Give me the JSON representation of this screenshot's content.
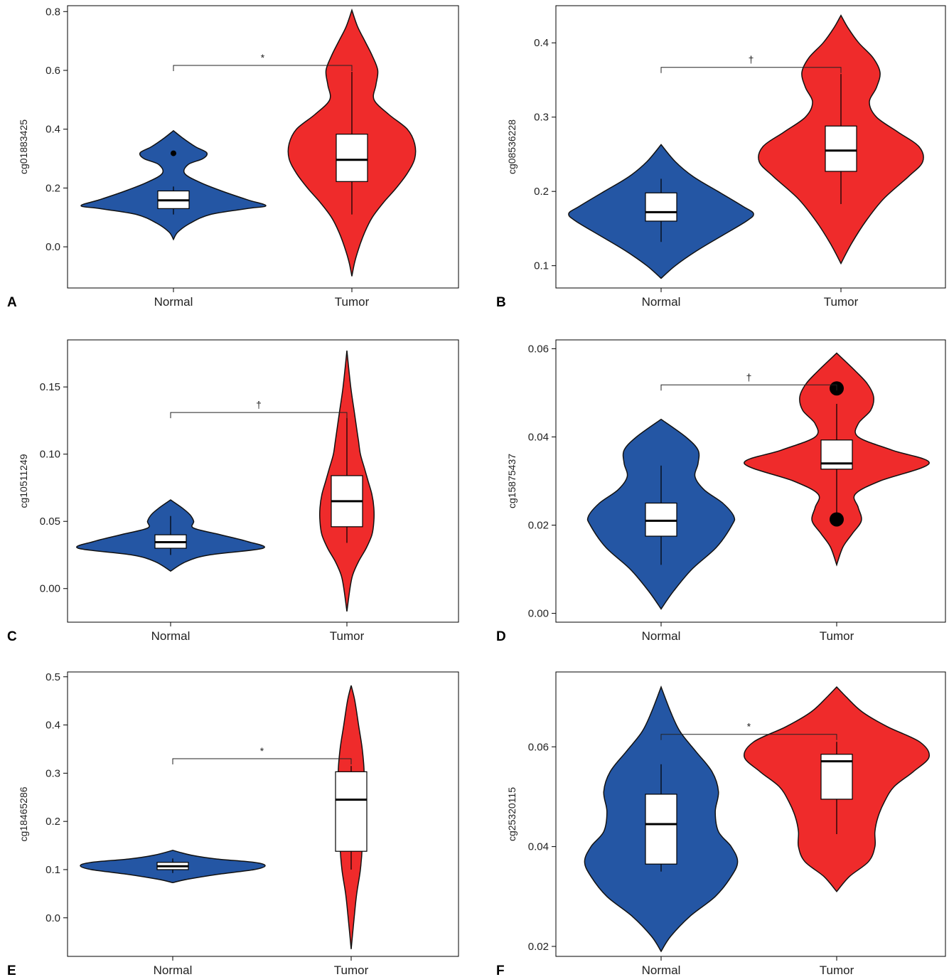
{
  "colors": {
    "normal": "#2456a4",
    "tumor": "#ef2b2b",
    "box": "#ffffff",
    "axis": "#000000"
  },
  "chart_data": [
    {
      "panel": "A",
      "type": "violin",
      "ylabel": "cg01883425",
      "categories": [
        "Normal",
        "Tumor"
      ],
      "yticks": [
        "0.0",
        "0.2",
        "0.4",
        "0.6",
        "0.8"
      ],
      "ylim": [
        -0.14,
        0.82
      ],
      "significance": "*",
      "series": [
        {
          "name": "Normal",
          "color": "#2456a4",
          "violin": [
            [
              0.025,
              0
            ],
            [
              0.05,
              0.012
            ],
            [
              0.08,
              0.045
            ],
            [
              0.11,
              0.1
            ],
            [
              0.13,
              0.2
            ],
            [
              0.14,
              0.25
            ],
            [
              0.16,
              0.2
            ],
            [
              0.19,
              0.13
            ],
            [
              0.22,
              0.07
            ],
            [
              0.25,
              0.03
            ],
            [
              0.28,
              0.04
            ],
            [
              0.3,
              0.08
            ],
            [
              0.32,
              0.09
            ],
            [
              0.34,
              0.06
            ],
            [
              0.37,
              0.025
            ],
            [
              0.395,
              0
            ]
          ],
          "box": {
            "q1": 0.13,
            "median": 0.158,
            "q3": 0.19,
            "wlow": 0.11,
            "whigh": 0.205
          },
          "outliers": [
            0.318
          ]
        },
        {
          "name": "Tumor",
          "color": "#ef2b2b",
          "violin": [
            [
              -0.1,
              0
            ],
            [
              -0.05,
              0.008
            ],
            [
              0.0,
              0.02
            ],
            [
              0.05,
              0.035
            ],
            [
              0.1,
              0.055
            ],
            [
              0.15,
              0.085
            ],
            [
              0.2,
              0.12
            ],
            [
              0.25,
              0.15
            ],
            [
              0.3,
              0.17
            ],
            [
              0.35,
              0.17
            ],
            [
              0.4,
              0.15
            ],
            [
              0.45,
              0.1
            ],
            [
              0.5,
              0.06
            ],
            [
              0.55,
              0.065
            ],
            [
              0.6,
              0.07
            ],
            [
              0.65,
              0.055
            ],
            [
              0.7,
              0.035
            ],
            [
              0.75,
              0.015
            ],
            [
              0.805,
              0
            ]
          ],
          "box": {
            "q1": 0.222,
            "median": 0.296,
            "q3": 0.383,
            "wlow": 0.11,
            "whigh": 0.595
          },
          "outliers": []
        }
      ],
      "bracket_y": 0.617
    },
    {
      "panel": "B",
      "type": "violin",
      "ylabel": "cg08536228",
      "categories": [
        "Normal",
        "Tumor"
      ],
      "yticks": [
        "0.1",
        "0.2",
        "0.3",
        "0.4"
      ],
      "ylim": [
        0.07,
        0.45
      ],
      "significance": "†",
      "series": [
        {
          "name": "Normal",
          "color": "#2456a4",
          "violin": [
            [
              0.083,
              0
            ],
            [
              0.1,
              0.04
            ],
            [
              0.12,
              0.1
            ],
            [
              0.14,
              0.17
            ],
            [
              0.16,
              0.24
            ],
            [
              0.17,
              0.26
            ],
            [
              0.18,
              0.23
            ],
            [
              0.2,
              0.16
            ],
            [
              0.22,
              0.09
            ],
            [
              0.24,
              0.04
            ],
            [
              0.263,
              0
            ]
          ],
          "box": {
            "q1": 0.16,
            "median": 0.172,
            "q3": 0.198,
            "wlow": 0.132,
            "whigh": 0.217
          },
          "outliers": []
        },
        {
          "name": "Tumor",
          "color": "#ef2b2b",
          "violin": [
            [
              0.103,
              0
            ],
            [
              0.13,
              0.03
            ],
            [
              0.16,
              0.07
            ],
            [
              0.19,
              0.12
            ],
            [
              0.22,
              0.19
            ],
            [
              0.24,
              0.23
            ],
            [
              0.26,
              0.22
            ],
            [
              0.28,
              0.16
            ],
            [
              0.3,
              0.1
            ],
            [
              0.32,
              0.08
            ],
            [
              0.34,
              0.1
            ],
            [
              0.36,
              0.11
            ],
            [
              0.38,
              0.09
            ],
            [
              0.4,
              0.05
            ],
            [
              0.42,
              0.02
            ],
            [
              0.437,
              0
            ]
          ],
          "box": {
            "q1": 0.227,
            "median": 0.255,
            "q3": 0.288,
            "wlow": 0.183,
            "whigh": 0.358
          },
          "outliers": []
        }
      ],
      "bracket_y": 0.367
    },
    {
      "panel": "C",
      "type": "violin",
      "ylabel": "cg10511249",
      "categories": [
        "Normal",
        "Tumor"
      ],
      "yticks": [
        "0.00",
        "0.05",
        "0.10",
        "0.15"
      ],
      "ylim": [
        -0.025,
        0.185
      ],
      "significance": "†",
      "series": [
        {
          "name": "Normal",
          "color": "#2456a4",
          "violin": [
            [
              0.013,
              0
            ],
            [
              0.02,
              0.04
            ],
            [
              0.025,
              0.1
            ],
            [
              0.03,
              0.24
            ],
            [
              0.035,
              0.2
            ],
            [
              0.04,
              0.13
            ],
            [
              0.045,
              0.06
            ],
            [
              0.05,
              0.06
            ],
            [
              0.055,
              0.05
            ],
            [
              0.06,
              0.03
            ],
            [
              0.066,
              0
            ]
          ],
          "box": {
            "q1": 0.03,
            "median": 0.0345,
            "q3": 0.04,
            "wlow": 0.025,
            "whigh": 0.054
          },
          "outliers": []
        },
        {
          "name": "Tumor",
          "color": "#ef2b2b",
          "violin": [
            [
              -0.017,
              0
            ],
            [
              0.0,
              0.008
            ],
            [
              0.01,
              0.015
            ],
            [
              0.02,
              0.03
            ],
            [
              0.03,
              0.05
            ],
            [
              0.04,
              0.065
            ],
            [
              0.05,
              0.07
            ],
            [
              0.06,
              0.07
            ],
            [
              0.07,
              0.065
            ],
            [
              0.08,
              0.055
            ],
            [
              0.09,
              0.045
            ],
            [
              0.1,
              0.035
            ],
            [
              0.11,
              0.03
            ],
            [
              0.12,
              0.025
            ],
            [
              0.13,
              0.02
            ],
            [
              0.15,
              0.01
            ],
            [
              0.177,
              0
            ]
          ],
          "box": {
            "q1": 0.046,
            "median": 0.065,
            "q3": 0.084,
            "wlow": 0.034,
            "whigh": 0.127
          },
          "outliers": []
        }
      ],
      "bracket_y": 0.131
    },
    {
      "panel": "D",
      "type": "violin",
      "ylabel": "cg15875437",
      "categories": [
        "Normal",
        "Tumor"
      ],
      "yticks": [
        "0.00",
        "0.02",
        "0.04",
        "0.06"
      ],
      "ylim": [
        -0.002,
        0.062
      ],
      "significance": "†",
      "series": [
        {
          "name": "Normal",
          "color": "#2456a4",
          "violin": [
            [
              0.001,
              0
            ],
            [
              0.005,
              0.02
            ],
            [
              0.01,
              0.05
            ],
            [
              0.015,
              0.09
            ],
            [
              0.02,
              0.115
            ],
            [
              0.022,
              0.118
            ],
            [
              0.025,
              0.1
            ],
            [
              0.028,
              0.07
            ],
            [
              0.031,
              0.055
            ],
            [
              0.034,
              0.06
            ],
            [
              0.037,
              0.06
            ],
            [
              0.04,
              0.04
            ],
            [
              0.044,
              0
            ]
          ],
          "box": {
            "q1": 0.0175,
            "median": 0.021,
            "q3": 0.025,
            "wlow": 0.011,
            "whigh": 0.0335
          },
          "outliers": []
        },
        {
          "name": "Tumor",
          "color": "#ef2b2b",
          "violin": [
            [
              0.011,
              0
            ],
            [
              0.015,
              0.01
            ],
            [
              0.018,
              0.025
            ],
            [
              0.021,
              0.04
            ],
            [
              0.024,
              0.035
            ],
            [
              0.027,
              0.03
            ],
            [
              0.03,
              0.07
            ],
            [
              0.034,
              0.15
            ],
            [
              0.037,
              0.09
            ],
            [
              0.04,
              0.035
            ],
            [
              0.043,
              0.035
            ],
            [
              0.046,
              0.055
            ],
            [
              0.049,
              0.06
            ],
            [
              0.052,
              0.05
            ],
            [
              0.055,
              0.03
            ],
            [
              0.059,
              0
            ]
          ],
          "box": {
            "q1": 0.0327,
            "median": 0.034,
            "q3": 0.0393,
            "wlow": 0.0215,
            "whigh": 0.0475
          },
          "outliers": [
            0.051,
            0.0213
          ]
        }
      ],
      "bracket_y": 0.0518
    },
    {
      "panel": "E",
      "type": "violin",
      "ylabel": "cg18465286",
      "categories": [
        "Normal",
        "Tumor"
      ],
      "yticks": [
        "0.0",
        "0.1",
        "0.2",
        "0.3",
        "0.4",
        "0.5"
      ],
      "ylim": [
        -0.08,
        0.51
      ],
      "significance": "*",
      "series": [
        {
          "name": "Normal",
          "color": "#2456a4",
          "violin": [
            [
              0.073,
              0
            ],
            [
              0.08,
              0.04
            ],
            [
              0.09,
              0.12
            ],
            [
              0.1,
              0.22
            ],
            [
              0.108,
              0.25
            ],
            [
              0.115,
              0.22
            ],
            [
              0.122,
              0.12
            ],
            [
              0.13,
              0.05
            ],
            [
              0.14,
              0
            ]
          ],
          "box": {
            "q1": 0.1,
            "median": 0.107,
            "q3": 0.115,
            "wlow": 0.093,
            "whigh": 0.123
          },
          "outliers": []
        },
        {
          "name": "Tumor",
          "color": "#ef2b2b",
          "violin": [
            [
              -0.065,
              0
            ],
            [
              0.0,
              0.008
            ],
            [
              0.05,
              0.015
            ],
            [
              0.1,
              0.025
            ],
            [
              0.15,
              0.03
            ],
            [
              0.2,
              0.03
            ],
            [
              0.25,
              0.03
            ],
            [
              0.3,
              0.035
            ],
            [
              0.35,
              0.03
            ],
            [
              0.4,
              0.02
            ],
            [
              0.45,
              0.01
            ],
            [
              0.482,
              0
            ]
          ],
          "box": {
            "q1": 0.138,
            "median": 0.245,
            "q3": 0.303,
            "wlow": 0.1,
            "whigh": 0.315
          },
          "outliers": []
        }
      ],
      "bracket_y": 0.33
    },
    {
      "panel": "F",
      "type": "violin",
      "ylabel": "cg25320115",
      "categories": [
        "Normal",
        "Tumor"
      ],
      "yticks": [
        "0.02",
        "0.04",
        "0.06"
      ],
      "ylim": [
        0.018,
        0.075
      ],
      "significance": "*",
      "series": [
        {
          "name": "Normal",
          "color": "#2456a4",
          "violin": [
            [
              0.019,
              0
            ],
            [
              0.022,
              0.015
            ],
            [
              0.026,
              0.045
            ],
            [
              0.03,
              0.085
            ],
            [
              0.034,
              0.11
            ],
            [
              0.037,
              0.12
            ],
            [
              0.04,
              0.11
            ],
            [
              0.043,
              0.09
            ],
            [
              0.047,
              0.085
            ],
            [
              0.051,
              0.09
            ],
            [
              0.055,
              0.08
            ],
            [
              0.059,
              0.055
            ],
            [
              0.063,
              0.03
            ],
            [
              0.067,
              0.015
            ],
            [
              0.072,
              0
            ]
          ],
          "box": {
            "q1": 0.0365,
            "median": 0.0445,
            "q3": 0.0505,
            "wlow": 0.035,
            "whigh": 0.0565
          },
          "outliers": []
        },
        {
          "name": "Tumor",
          "color": "#ef2b2b",
          "violin": [
            [
              0.031,
              0
            ],
            [
              0.034,
              0.02
            ],
            [
              0.037,
              0.05
            ],
            [
              0.04,
              0.06
            ],
            [
              0.043,
              0.06
            ],
            [
              0.046,
              0.065
            ],
            [
              0.049,
              0.075
            ],
            [
              0.052,
              0.09
            ],
            [
              0.055,
              0.12
            ],
            [
              0.058,
              0.145
            ],
            [
              0.061,
              0.13
            ],
            [
              0.064,
              0.08
            ],
            [
              0.067,
              0.04
            ],
            [
              0.07,
              0.015
            ],
            [
              0.072,
              0
            ]
          ],
          "box": {
            "q1": 0.0495,
            "median": 0.0571,
            "q3": 0.0585,
            "wlow": 0.0425,
            "whigh": 0.061
          },
          "outliers": []
        }
      ],
      "bracket_y": 0.0625
    }
  ]
}
